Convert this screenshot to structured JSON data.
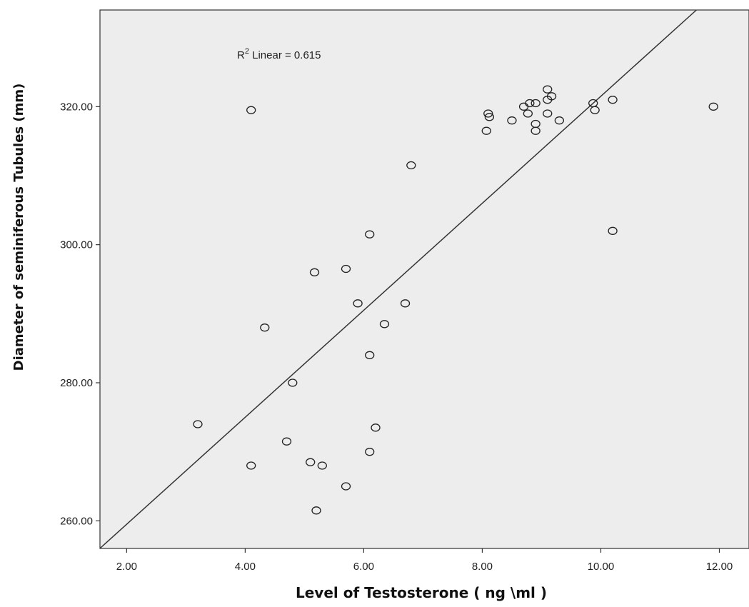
{
  "chart_data": {
    "type": "scatter",
    "title": "",
    "xlabel": "Level of  Testosterone ( ng \\ml )",
    "ylabel": "Diameter of seminiferous Tubules (mm)",
    "xlim": [
      1.55,
      12.5
    ],
    "ylim": [
      256,
      334
    ],
    "xticks": [
      2,
      4,
      6,
      8,
      10,
      12
    ],
    "xtick_labels": [
      "2.00",
      "4.00",
      "6.00",
      "8.00",
      "10.00",
      "12.00"
    ],
    "yticks": [
      260,
      280,
      300,
      320
    ],
    "ytick_labels": [
      "260.00",
      "280.00",
      "300.00",
      "320.00"
    ],
    "grid": false,
    "legend": "none",
    "annotation": {
      "r_label": "R",
      "r_sup": "2",
      "text": " Linear = 0.615"
    },
    "fit_line": {
      "slope": 7.75,
      "intercept": 244.0
    },
    "colors": {
      "plot_background": "#ededed",
      "marker": "#222222",
      "line": "#333333"
    },
    "points": [
      {
        "x": 3.2,
        "y": 274.0
      },
      {
        "x": 4.1,
        "y": 319.5
      },
      {
        "x": 4.1,
        "y": 268.0
      },
      {
        "x": 4.33,
        "y": 288.0
      },
      {
        "x": 4.7,
        "y": 271.5
      },
      {
        "x": 4.8,
        "y": 280.0
      },
      {
        "x": 5.1,
        "y": 268.5
      },
      {
        "x": 5.17,
        "y": 296.0
      },
      {
        "x": 5.2,
        "y": 261.5
      },
      {
        "x": 5.3,
        "y": 268.0
      },
      {
        "x": 5.7,
        "y": 296.5
      },
      {
        "x": 5.7,
        "y": 265.0
      },
      {
        "x": 5.9,
        "y": 291.5
      },
      {
        "x": 6.1,
        "y": 301.5
      },
      {
        "x": 6.1,
        "y": 284.0
      },
      {
        "x": 6.1,
        "y": 270.0
      },
      {
        "x": 6.2,
        "y": 273.5
      },
      {
        "x": 6.35,
        "y": 288.5
      },
      {
        "x": 6.7,
        "y": 291.5
      },
      {
        "x": 6.8,
        "y": 311.5
      },
      {
        "x": 8.07,
        "y": 316.5
      },
      {
        "x": 8.1,
        "y": 319.0
      },
      {
        "x": 8.12,
        "y": 318.5
      },
      {
        "x": 8.5,
        "y": 318.0
      },
      {
        "x": 8.7,
        "y": 320.0
      },
      {
        "x": 8.77,
        "y": 319.0
      },
      {
        "x": 8.8,
        "y": 320.5
      },
      {
        "x": 8.9,
        "y": 320.5
      },
      {
        "x": 8.9,
        "y": 317.5
      },
      {
        "x": 8.9,
        "y": 316.5
      },
      {
        "x": 9.1,
        "y": 322.5
      },
      {
        "x": 9.1,
        "y": 321.0
      },
      {
        "x": 9.1,
        "y": 319.0
      },
      {
        "x": 9.17,
        "y": 321.5
      },
      {
        "x": 9.3,
        "y": 318.0
      },
      {
        "x": 9.87,
        "y": 320.5
      },
      {
        "x": 9.9,
        "y": 319.5
      },
      {
        "x": 10.2,
        "y": 321.0
      },
      {
        "x": 10.2,
        "y": 302.0
      },
      {
        "x": 11.9,
        "y": 320.0
      }
    ]
  }
}
